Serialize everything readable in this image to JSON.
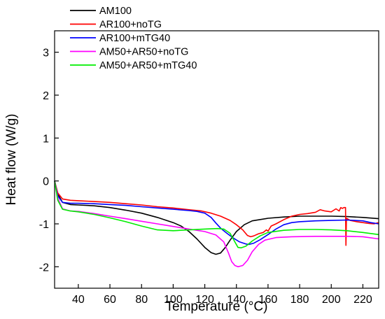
{
  "chart_data": {
    "type": "line",
    "title": "",
    "xlabel": "Temperature (°C)",
    "ylabel": "Heat flow (W/g)",
    "xlim": [
      25,
      230
    ],
    "ylim": [
      -2.5,
      3.5
    ],
    "x_ticks": [
      40,
      60,
      80,
      100,
      120,
      140,
      160,
      180,
      200,
      220
    ],
    "y_ticks": [
      -2,
      -1,
      0,
      1,
      2,
      3
    ],
    "grid": false,
    "legend_position": "top-left",
    "series": [
      {
        "name": "AM100",
        "color": "#000000",
        "points": [
          [
            25,
            0
          ],
          [
            27,
            -0.3
          ],
          [
            30,
            -0.5
          ],
          [
            35,
            -0.55
          ],
          [
            40,
            -0.56
          ],
          [
            50,
            -0.58
          ],
          [
            60,
            -0.62
          ],
          [
            70,
            -0.68
          ],
          [
            80,
            -0.75
          ],
          [
            90,
            -0.85
          ],
          [
            100,
            -0.97
          ],
          [
            105,
            -1.05
          ],
          [
            110,
            -1.18
          ],
          [
            115,
            -1.35
          ],
          [
            120,
            -1.55
          ],
          [
            124,
            -1.67
          ],
          [
            127,
            -1.71
          ],
          [
            130,
            -1.68
          ],
          [
            133,
            -1.55
          ],
          [
            136,
            -1.38
          ],
          [
            140,
            -1.18
          ],
          [
            145,
            -1.02
          ],
          [
            150,
            -0.93
          ],
          [
            160,
            -0.87
          ],
          [
            170,
            -0.84
          ],
          [
            180,
            -0.82
          ],
          [
            190,
            -0.82
          ],
          [
            200,
            -0.82
          ],
          [
            210,
            -0.83
          ],
          [
            220,
            -0.85
          ],
          [
            230,
            -0.88
          ]
        ]
      },
      {
        "name": "AR100+noTG",
        "color": "#ff0000",
        "points": [
          [
            25,
            0
          ],
          [
            27,
            -0.28
          ],
          [
            30,
            -0.42
          ],
          [
            35,
            -0.45
          ],
          [
            40,
            -0.46
          ],
          [
            50,
            -0.48
          ],
          [
            60,
            -0.5
          ],
          [
            70,
            -0.53
          ],
          [
            80,
            -0.56
          ],
          [
            90,
            -0.6
          ],
          [
            100,
            -0.63
          ],
          [
            110,
            -0.67
          ],
          [
            118,
            -0.7
          ],
          [
            124,
            -0.75
          ],
          [
            130,
            -0.82
          ],
          [
            136,
            -0.92
          ],
          [
            140,
            -1.02
          ],
          [
            144,
            -1.14
          ],
          [
            147,
            -1.27
          ],
          [
            149,
            -1.3
          ],
          [
            151,
            -1.28
          ],
          [
            154,
            -1.23
          ],
          [
            157,
            -1.2
          ],
          [
            159,
            -1.14
          ],
          [
            160,
            -1.17
          ],
          [
            162,
            -1.05
          ],
          [
            165,
            -1.0
          ],
          [
            170,
            -0.9
          ],
          [
            175,
            -0.82
          ],
          [
            180,
            -0.78
          ],
          [
            185,
            -0.76
          ],
          [
            190,
            -0.73
          ],
          [
            193,
            -0.67
          ],
          [
            196,
            -0.7
          ],
          [
            200,
            -0.72
          ],
          [
            203,
            -0.65
          ],
          [
            205,
            -0.7
          ],
          [
            206,
            -0.62
          ],
          [
            207,
            -0.64
          ],
          [
            208,
            -0.62
          ],
          [
            209,
            -0.62
          ],
          [
            209.3,
            -1.5
          ],
          [
            209.6,
            -0.87
          ],
          [
            212,
            -0.92
          ],
          [
            216,
            -0.95
          ],
          [
            220,
            -0.97
          ],
          [
            224,
            -0.99
          ],
          [
            227,
            -1.0
          ],
          [
            230,
            -0.97
          ]
        ]
      },
      {
        "name": "AR100+mTG40",
        "color": "#0000ff",
        "points": [
          [
            25,
            0
          ],
          [
            27,
            -0.35
          ],
          [
            30,
            -0.5
          ],
          [
            35,
            -0.52
          ],
          [
            40,
            -0.52
          ],
          [
            50,
            -0.53
          ],
          [
            60,
            -0.55
          ],
          [
            70,
            -0.57
          ],
          [
            80,
            -0.6
          ],
          [
            90,
            -0.63
          ],
          [
            100,
            -0.66
          ],
          [
            110,
            -0.69
          ],
          [
            115,
            -0.71
          ],
          [
            120,
            -0.75
          ],
          [
            124,
            -0.85
          ],
          [
            127,
            -0.98
          ],
          [
            130,
            -1.1
          ],
          [
            134,
            -1.22
          ],
          [
            138,
            -1.33
          ],
          [
            142,
            -1.42
          ],
          [
            146,
            -1.47
          ],
          [
            148,
            -1.48
          ],
          [
            151,
            -1.45
          ],
          [
            155,
            -1.37
          ],
          [
            160,
            -1.25
          ],
          [
            165,
            -1.12
          ],
          [
            170,
            -1.02
          ],
          [
            175,
            -0.97
          ],
          [
            180,
            -0.95
          ],
          [
            190,
            -0.93
          ],
          [
            200,
            -0.92
          ],
          [
            210,
            -0.91
          ],
          [
            220,
            -0.93
          ],
          [
            225,
            -0.97
          ],
          [
            230,
            -1.0
          ]
        ]
      },
      {
        "name": "AM50+AR50+noTG",
        "color": "#ff00ff",
        "points": [
          [
            25,
            0
          ],
          [
            27,
            -0.4
          ],
          [
            30,
            -0.65
          ],
          [
            35,
            -0.7
          ],
          [
            40,
            -0.71
          ],
          [
            50,
            -0.76
          ],
          [
            60,
            -0.82
          ],
          [
            70,
            -0.88
          ],
          [
            80,
            -0.94
          ],
          [
            90,
            -1.0
          ],
          [
            100,
            -1.06
          ],
          [
            110,
            -1.12
          ],
          [
            120,
            -1.18
          ],
          [
            127,
            -1.26
          ],
          [
            132,
            -1.42
          ],
          [
            135,
            -1.68
          ],
          [
            137,
            -1.88
          ],
          [
            139,
            -1.97
          ],
          [
            141,
            -2.0
          ],
          [
            144,
            -1.97
          ],
          [
            147,
            -1.85
          ],
          [
            150,
            -1.65
          ],
          [
            154,
            -1.48
          ],
          [
            158,
            -1.38
          ],
          [
            165,
            -1.32
          ],
          [
            175,
            -1.3
          ],
          [
            190,
            -1.29
          ],
          [
            200,
            -1.29
          ],
          [
            210,
            -1.29
          ],
          [
            220,
            -1.3
          ],
          [
            230,
            -1.35
          ]
        ]
      },
      {
        "name": "AM50+AR50+mTG40",
        "color": "#00ee00",
        "points": [
          [
            25,
            0
          ],
          [
            27,
            -0.45
          ],
          [
            30,
            -0.66
          ],
          [
            35,
            -0.7
          ],
          [
            40,
            -0.72
          ],
          [
            50,
            -0.78
          ],
          [
            60,
            -0.86
          ],
          [
            70,
            -0.95
          ],
          [
            80,
            -1.05
          ],
          [
            90,
            -1.14
          ],
          [
            100,
            -1.16
          ],
          [
            110,
            -1.14
          ],
          [
            120,
            -1.12
          ],
          [
            128,
            -1.11
          ],
          [
            132,
            -1.12
          ],
          [
            136,
            -1.22
          ],
          [
            139,
            -1.42
          ],
          [
            141,
            -1.55
          ],
          [
            143,
            -1.56
          ],
          [
            146,
            -1.52
          ],
          [
            150,
            -1.4
          ],
          [
            155,
            -1.28
          ],
          [
            160,
            -1.2
          ],
          [
            170,
            -1.15
          ],
          [
            180,
            -1.13
          ],
          [
            190,
            -1.13
          ],
          [
            200,
            -1.14
          ],
          [
            210,
            -1.16
          ],
          [
            220,
            -1.2
          ],
          [
            230,
            -1.25
          ]
        ]
      }
    ]
  }
}
